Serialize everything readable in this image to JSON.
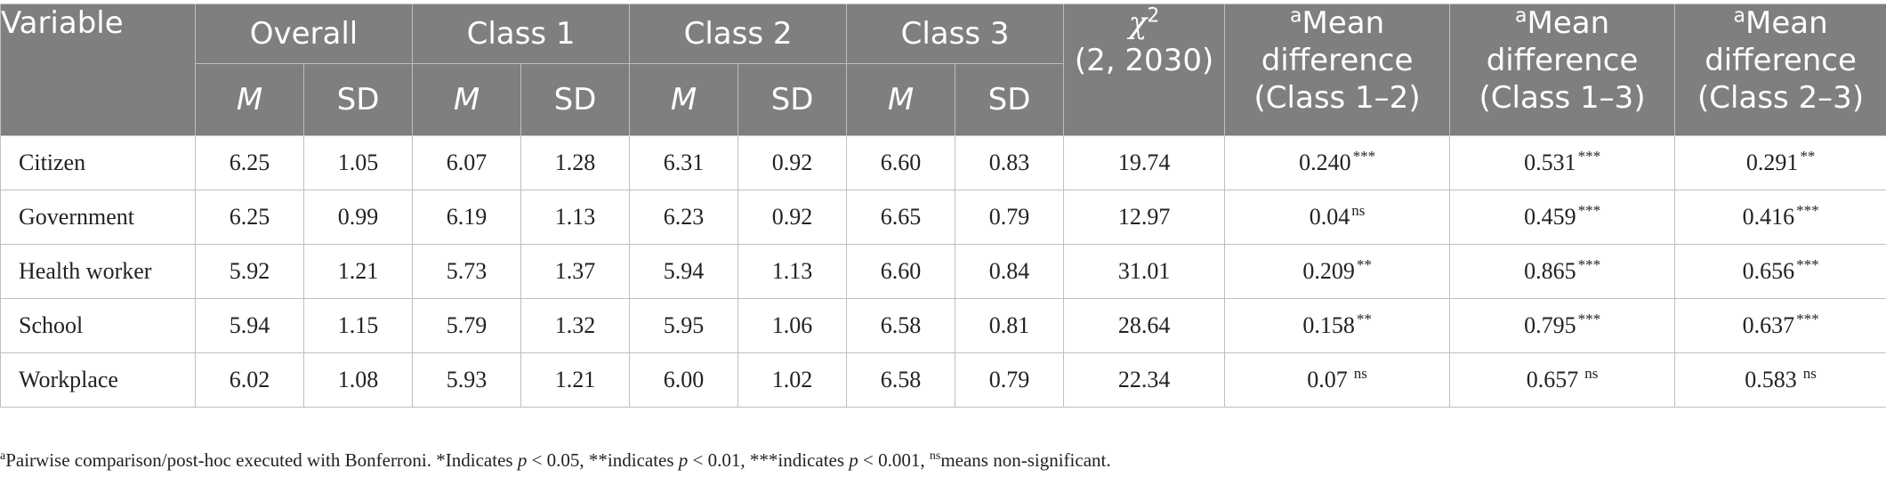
{
  "table": {
    "headers": {
      "variable": "Variable",
      "groups": [
        "Overall",
        "Class 1",
        "Class 2",
        "Class 3"
      ],
      "m": "M",
      "sd": "SD",
      "chi_symbol": "χ",
      "chi_sup": "2",
      "chi_df": "(2, 2030)",
      "mean_diff_sup": "a",
      "mean_diff_line1": "Mean",
      "mean_diff_line2": "difference",
      "mean_diff_pairs": [
        "(Class 1–2)",
        "(Class 1–3)",
        "(Class 2–3)"
      ]
    },
    "rows": [
      {
        "label": "Citizen",
        "values": [
          "6.25",
          "1.05",
          "6.07",
          "1.28",
          "6.31",
          "0.92",
          "6.60",
          "0.83",
          "19.74"
        ],
        "diffs": [
          {
            "v": "0.240",
            "s": "***"
          },
          {
            "v": "0.531",
            "s": "***"
          },
          {
            "v": "0.291",
            "s": "**"
          }
        ]
      },
      {
        "label": "Government",
        "values": [
          "6.25",
          "0.99",
          "6.19",
          "1.13",
          "6.23",
          "0.92",
          "6.65",
          "0.79",
          "12.97"
        ],
        "diffs": [
          {
            "v": "0.04",
            "s": "ns"
          },
          {
            "v": "0.459",
            "s": "***"
          },
          {
            "v": "0.416",
            "s": "***"
          }
        ]
      },
      {
        "label": "Health worker",
        "values": [
          "5.92",
          "1.21",
          "5.73",
          "1.37",
          "5.94",
          "1.13",
          "6.60",
          "0.84",
          "31.01"
        ],
        "diffs": [
          {
            "v": "0.209",
            "s": "**"
          },
          {
            "v": "0.865",
            "s": "***"
          },
          {
            "v": "0.656",
            "s": "***"
          }
        ]
      },
      {
        "label": "School",
        "values": [
          "5.94",
          "1.15",
          "5.79",
          "1.32",
          "5.95",
          "1.06",
          "6.58",
          "0.81",
          "28.64"
        ],
        "diffs": [
          {
            "v": "0.158",
            "s": "**"
          },
          {
            "v": "0.795",
            "s": "***"
          },
          {
            "v": "0.637",
            "s": "***"
          }
        ]
      },
      {
        "label": "Workplace",
        "values": [
          "6.02",
          "1.08",
          "5.93",
          "1.21",
          "6.00",
          "1.02",
          "6.58",
          "0.79",
          "22.34"
        ],
        "diffs": [
          {
            "v": "0.07",
            "s": "ns"
          },
          {
            "v": "0.657",
            "s": "ns"
          },
          {
            "v": "0.583",
            "s": "ns"
          }
        ]
      }
    ]
  },
  "footnote": {
    "sup_a": "a",
    "t1": "Pairwise comparison/post-hoc executed with Bonferroni. *Indicates ",
    "p": "p",
    "t2": " < 0.05, **indicates ",
    "t3": " < 0.01, ***indicates ",
    "t4": " < 0.001, ",
    "sup_ns": "ns",
    "t5": "means non-significant."
  }
}
